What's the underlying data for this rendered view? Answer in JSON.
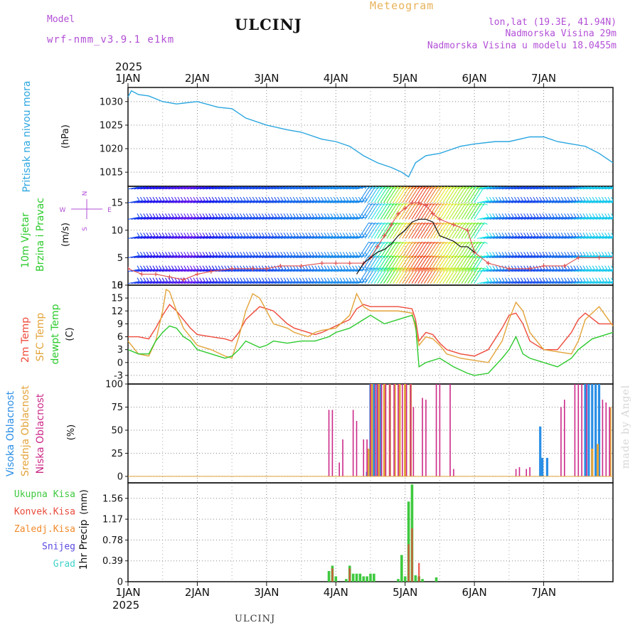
{
  "header": {
    "model_label": "Model",
    "model_name": "wrf-nmm_v3.9.1 e1km",
    "title": "ULCINJ",
    "meteogram": "Meteogram",
    "coords": "lon,lat (19.3E, 41.94N)",
    "altitude": "Nadmorska Visina 29m",
    "model_altitude": "Nadmorska Visina u modelu 18.0455m"
  },
  "footer": {
    "station": "ULCINJ",
    "made_by": "made by Angel"
  },
  "colors": {
    "pressure": "#2aa6e0",
    "temp2m": "#ee4a3a",
    "sfc": "#e3a43a",
    "dewpt": "#2dca2d",
    "high_cloud": "#2a8ee6",
    "mid_cloud": "#e3a43a",
    "low_cloud": "#cc2a8a",
    "total_precip": "#3ec93e",
    "conv_precip": "#e84a3a",
    "freezing": "#ef8a2a",
    "snow": "#5a4ae0",
    "hail": "#3ed2c8",
    "wind_speed": "#e05050",
    "purple": "#b24fd6"
  },
  "chart_data": [
    {
      "id": "pressure",
      "type": "line",
      "ylabel": "Pritisak na nivou mora",
      "unit": "(hPa)",
      "ylim": [
        1012,
        1033
      ],
      "yticks": [
        1015,
        1020,
        1025,
        1030
      ],
      "x_top_year": "2025",
      "x_top_labels": [
        "1JAN",
        "2JAN",
        "3JAN",
        "4JAN",
        "5JAN",
        "6JAN",
        "7JAN"
      ],
      "series": [
        {
          "color": "#2aa6e0",
          "x": [
            0,
            0.05,
            0.15,
            0.3,
            0.5,
            0.7,
            1,
            1.3,
            1.5,
            1.7,
            2,
            2.3,
            2.5,
            2.8,
            3,
            3.2,
            3.4,
            3.6,
            3.8,
            3.95,
            4.05,
            4.15,
            4.3,
            4.5,
            4.8,
            5,
            5.3,
            5.5,
            5.8,
            6,
            6.2,
            6.4,
            6.6,
            6.8,
            7
          ],
          "y": [
            1031,
            1032.3,
            1031.5,
            1031.2,
            1030,
            1029.5,
            1030,
            1028.8,
            1028.5,
            1026.5,
            1025,
            1024,
            1023.5,
            1022,
            1021.5,
            1020.5,
            1018.5,
            1017,
            1016,
            1015,
            1014,
            1017,
            1018.5,
            1019,
            1020.5,
            1021,
            1021.5,
            1021.5,
            1022.5,
            1022.5,
            1021.5,
            1021,
            1020.5,
            1019,
            1017
          ]
        }
      ]
    },
    {
      "id": "wind",
      "type": "line",
      "ylabel": [
        "10m Vjetar",
        "Brzina i Pravac"
      ],
      "unit": "(m/s)",
      "ylim": [
        0,
        18
      ],
      "yticks": [
        0,
        5,
        10,
        15
      ],
      "compass": {
        "north": "N",
        "south": "S",
        "east": "E",
        "west": "W"
      },
      "series": [
        {
          "name": "speed",
          "color": "#e05050",
          "x": [
            0,
            0.2,
            0.4,
            0.6,
            0.8,
            1,
            1.2,
            1.5,
            1.8,
            2,
            2.2,
            2.5,
            2.8,
            3,
            3.2,
            3.4,
            3.5,
            3.6,
            3.7,
            3.8,
            3.9,
            4,
            4.1,
            4.2,
            4.3,
            4.4,
            4.5,
            4.7,
            4.9,
            5,
            5.2,
            5.5,
            5.8,
            6,
            6.3,
            6.5,
            6.8,
            7
          ],
          "y": [
            3,
            2,
            2,
            1.5,
            1,
            2,
            2.5,
            3,
            3,
            3,
            3.5,
            3.5,
            4,
            4,
            4,
            4,
            5,
            7,
            9,
            11,
            13,
            14,
            15,
            15,
            14.5,
            13,
            12,
            11,
            10,
            6,
            4,
            3,
            3,
            3.5,
            3.5,
            5,
            5,
            5
          ]
        },
        {
          "name": "gust",
          "color": "#111111",
          "x": [
            3.3,
            3.4,
            3.5,
            3.6,
            3.7,
            3.8,
            3.9,
            4,
            4.1,
            4.2,
            4.3,
            4.4,
            4.5,
            4.6,
            4.7,
            4.8,
            4.9,
            5
          ],
          "y": [
            2,
            4,
            5,
            6,
            6.5,
            7.5,
            9,
            10,
            11.5,
            12,
            12,
            11.5,
            9,
            8.5,
            8,
            7,
            7,
            6
          ]
        }
      ]
    },
    {
      "id": "temperature",
      "type": "line",
      "ylabel": [
        "2m Temp",
        "SFC Temp",
        "dewpt Temp"
      ],
      "unit": "(C)",
      "ylim": [
        -5,
        18
      ],
      "yticks": [
        -3,
        0,
        3,
        6,
        9,
        12,
        15,
        18
      ],
      "series": [
        {
          "name": "2m Temp",
          "color": "#ee4a3a",
          "x": [
            0,
            0.15,
            0.3,
            0.4,
            0.5,
            0.6,
            0.7,
            0.8,
            0.9,
            1,
            1.2,
            1.4,
            1.5,
            1.6,
            1.7,
            1.9,
            2.1,
            2.3,
            2.4,
            2.5,
            2.6,
            2.7,
            2.8,
            3,
            3.2,
            3.3,
            3.4,
            3.5,
            3.7,
            3.9,
            4.1,
            4.15,
            4.2,
            4.3,
            4.4,
            4.5,
            4.6,
            4.8,
            5,
            5.2,
            5.4,
            5.5,
            5.6,
            5.7,
            5.8,
            6,
            6.2,
            6.4,
            6.5,
            6.6,
            6.8,
            7
          ],
          "y": [
            6,
            6,
            5.5,
            8,
            11,
            13.5,
            12,
            10,
            8,
            6.5,
            6,
            5.5,
            5,
            7,
            10,
            13,
            12,
            9,
            8,
            7.5,
            7,
            6.5,
            7,
            8.5,
            10,
            12.5,
            13.5,
            13,
            13,
            13,
            12.5,
            10,
            5,
            7,
            6.5,
            4.5,
            3,
            2,
            1.5,
            3,
            8,
            11,
            11.5,
            9,
            5,
            3,
            3,
            7,
            10,
            11.5,
            9,
            9
          ]
        },
        {
          "name": "SFC Temp",
          "color": "#e3a43a",
          "x": [
            0,
            0.15,
            0.3,
            0.4,
            0.5,
            0.55,
            0.6,
            0.7,
            0.8,
            0.9,
            1,
            1.2,
            1.4,
            1.5,
            1.6,
            1.7,
            1.8,
            1.9,
            2,
            2.1,
            2.3,
            2.4,
            2.5,
            2.6,
            2.7,
            2.8,
            3,
            3.2,
            3.3,
            3.4,
            3.5,
            3.7,
            3.9,
            4.1,
            4.15,
            4.2,
            4.3,
            4.4,
            4.5,
            4.6,
            4.8,
            5,
            5.2,
            5.4,
            5.5,
            5.6,
            5.7,
            5.8,
            6,
            6.2,
            6.4,
            6.5,
            6.6,
            6.8,
            7
          ],
          "y": [
            5,
            2,
            1.5,
            5,
            12,
            17,
            16.5,
            12,
            8,
            6,
            4,
            3,
            1.5,
            1,
            6,
            12,
            16,
            15,
            12,
            9,
            8,
            7,
            6.5,
            6,
            7,
            7.5,
            8,
            11,
            16,
            13,
            12,
            12,
            12,
            11.5,
            8,
            4,
            6,
            5.5,
            4,
            2,
            1,
            0.5,
            0,
            5,
            10,
            14,
            12,
            7,
            3,
            2.5,
            2,
            5,
            10,
            13,
            8.5
          ]
        },
        {
          "name": "dewpt Temp",
          "color": "#2dca2d",
          "x": [
            0,
            0.15,
            0.3,
            0.4,
            0.5,
            0.6,
            0.7,
            0.8,
            0.9,
            1,
            1.2,
            1.4,
            1.5,
            1.6,
            1.7,
            1.9,
            2,
            2.1,
            2.3,
            2.5,
            2.7,
            2.9,
            3,
            3.2,
            3.3,
            3.5,
            3.7,
            3.9,
            4.1,
            4.15,
            4.2,
            4.3,
            4.5,
            4.7,
            4.9,
            5,
            5.2,
            5.4,
            5.5,
            5.6,
            5.7,
            5.8,
            6,
            6.2,
            6.4,
            6.5,
            6.7,
            7
          ],
          "y": [
            3,
            2,
            2,
            5,
            7,
            8.5,
            8,
            6,
            5,
            3,
            2,
            1,
            1.5,
            3,
            5,
            3.5,
            4,
            5,
            4.5,
            5,
            5,
            6,
            7,
            8,
            9,
            11,
            9,
            10,
            11,
            9,
            -1,
            0,
            1,
            -1,
            -2.5,
            -3,
            -2.5,
            1,
            3,
            6,
            2,
            1,
            0,
            -1,
            1,
            3,
            5.5,
            7
          ]
        }
      ]
    },
    {
      "id": "cloud",
      "type": "bar",
      "ylabel": [
        "Visoka Oblacnost",
        "Srednja Oblacnost",
        "Niska Oblacnost"
      ],
      "unit": "(%)",
      "ylim": [
        -7,
        100
      ],
      "yticks": [
        0,
        25,
        50,
        75,
        100
      ],
      "series": [
        {
          "name": "Visoka Oblacnost",
          "color": "#2a8ee6",
          "x": [
            3.45,
            3.5,
            3.55,
            3.6,
            3.65,
            5.95,
            5.98,
            6.05,
            6.6,
            6.65,
            6.7,
            6.75,
            6.8
          ],
          "values": [
            5,
            100,
            100,
            100,
            100,
            54,
            20,
            20,
            100,
            100,
            100,
            100,
            100
          ]
        },
        {
          "name": "Srednja Oblacnost",
          "color": "#e3a43a",
          "x": [
            3.47,
            3.52,
            3.62,
            3.7,
            3.78,
            3.85,
            3.92,
            4,
            4.08,
            6.7,
            6.78,
            6.96
          ],
          "values": [
            30,
            100,
            100,
            100,
            100,
            100,
            100,
            100,
            100,
            30,
            35,
            75
          ]
        },
        {
          "name": "Niska Oblacnost",
          "color": "#cc2a8a",
          "x": [
            2.9,
            2.95,
            3.05,
            3.1,
            3.25,
            3.3,
            3.4,
            3.45,
            3.5,
            3.57,
            3.6,
            3.66,
            3.72,
            3.78,
            3.84,
            3.9,
            3.96,
            4.02,
            4.08,
            4.12,
            4.25,
            4.3,
            4.45,
            4.5,
            4.65,
            4.7,
            5.6,
            5.65,
            5.75,
            5.8,
            6.25,
            6.3,
            6.45,
            6.5,
            6.55,
            6.62,
            6.85,
            6.9,
            6.95
          ],
          "values": [
            72,
            72,
            15,
            40,
            72,
            60,
            40,
            40,
            100,
            100,
            100,
            100,
            100,
            100,
            100,
            100,
            100,
            100,
            100,
            75,
            85,
            83,
            100,
            100,
            100,
            8,
            8,
            10,
            8,
            10,
            75,
            83,
            100,
            100,
            100,
            100,
            83,
            80,
            75
          ]
        }
      ]
    },
    {
      "id": "precip",
      "type": "bar",
      "ylabel": "1hr Precip",
      "unit": "(mm)",
      "ylim": [
        0,
        1.85
      ],
      "yticks": [
        0,
        0.39,
        0.78,
        1.17,
        1.56
      ],
      "legend": [
        "Ukupna Kisa",
        "Konvek.Kisa",
        "Zaledj.Kisa",
        "Snijeg",
        "Grad"
      ],
      "x_bottom_year": "2025",
      "x_bottom_labels": [
        "1JAN",
        "2JAN",
        "3JAN",
        "4JAN",
        "5JAN",
        "6JAN",
        "7JAN"
      ],
      "series": [
        {
          "name": "Ukupna Kisa",
          "color": "#3ec93e",
          "x": [
            2.9,
            2.95,
            3.0,
            3.15,
            3.2,
            3.25,
            3.3,
            3.35,
            3.4,
            3.45,
            3.5,
            3.55,
            3.9,
            3.95,
            4.0,
            4.05,
            4.1,
            4.15,
            4.2,
            4.25,
            4.45
          ],
          "values": [
            0.2,
            0.3,
            0.1,
            0.05,
            0.3,
            0.15,
            0.15,
            0.15,
            0.1,
            0.1,
            0.15,
            0.15,
            0.05,
            0.5,
            0.1,
            1.5,
            1.82,
            0.12,
            0.1,
            0.05,
            0.08
          ]
        },
        {
          "name": "Konvek.Kisa",
          "color": "#e84a3a",
          "x": [
            2.95,
            3.2,
            4.05,
            4.1,
            4.2
          ],
          "values": [
            0.25,
            0.25,
            0.7,
            1.0,
            0.35
          ]
        }
      ]
    }
  ]
}
